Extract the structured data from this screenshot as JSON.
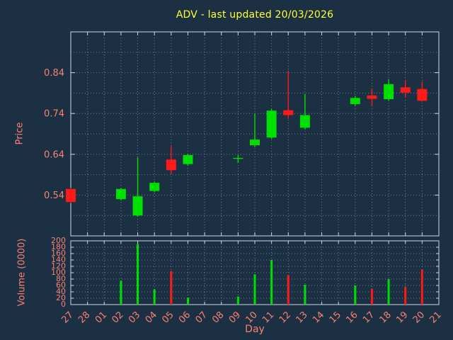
{
  "chart_data": {
    "type": "candlestick",
    "title": "ADV - last updated 20/03/2026",
    "xlabel": "Day",
    "ylabel_price": "Price",
    "ylabel_volume": "Volume (0000)",
    "legend": "none",
    "grid": "dotted",
    "x_categories": [
      "27",
      "28",
      "01",
      "02",
      "03",
      "04",
      "05",
      "06",
      "07",
      "08",
      "09",
      "10",
      "11",
      "12",
      "13",
      "14",
      "15",
      "16",
      "17",
      "18",
      "19",
      "20",
      "21"
    ],
    "price_axis": {
      "min": 0.44,
      "max": 0.94,
      "ticks": [
        0.54,
        0.64,
        0.74,
        0.84
      ],
      "minor_step": 0.05
    },
    "volume_axis": {
      "min": 0,
      "max": 200,
      "ticks": [
        0,
        20,
        40,
        60,
        80,
        100,
        120,
        140,
        160,
        180,
        200
      ]
    },
    "candles": [
      {
        "day": "27",
        "open": 0.555,
        "high": 0.558,
        "low": 0.52,
        "close": 0.523,
        "volume": 0
      },
      {
        "day": "02",
        "open": 0.53,
        "high": 0.557,
        "low": 0.527,
        "close": 0.555,
        "volume": 75
      },
      {
        "day": "03",
        "open": 0.49,
        "high": 0.632,
        "low": 0.487,
        "close": 0.537,
        "volume": 190
      },
      {
        "day": "04",
        "open": 0.55,
        "high": 0.573,
        "low": 0.547,
        "close": 0.57,
        "volume": 48
      },
      {
        "day": "05",
        "open": 0.627,
        "high": 0.66,
        "low": 0.592,
        "close": 0.601,
        "volume": 105
      },
      {
        "day": "06",
        "open": 0.616,
        "high": 0.641,
        "low": 0.612,
        "close": 0.638,
        "volume": 22
      },
      {
        "day": "09",
        "open": 0.629,
        "high": 0.638,
        "low": 0.619,
        "close": 0.631,
        "volume": 25
      },
      {
        "day": "10",
        "open": 0.662,
        "high": 0.74,
        "low": 0.658,
        "close": 0.676,
        "volume": 95
      },
      {
        "day": "11",
        "open": 0.681,
        "high": 0.751,
        "low": 0.678,
        "close": 0.747,
        "volume": 140
      },
      {
        "day": "12",
        "open": 0.748,
        "high": 0.845,
        "low": 0.727,
        "close": 0.736,
        "volume": 92
      },
      {
        "day": "13",
        "open": 0.705,
        "high": 0.788,
        "low": 0.701,
        "close": 0.736,
        "volume": 62
      },
      {
        "day": "16",
        "open": 0.763,
        "high": 0.783,
        "low": 0.759,
        "close": 0.778,
        "volume": 60
      },
      {
        "day": "17",
        "open": 0.784,
        "high": 0.801,
        "low": 0.758,
        "close": 0.776,
        "volume": 50
      },
      {
        "day": "18",
        "open": 0.775,
        "high": 0.824,
        "low": 0.771,
        "close": 0.812,
        "volume": 80
      },
      {
        "day": "19",
        "open": 0.804,
        "high": 0.822,
        "low": 0.779,
        "close": 0.791,
        "volume": 55
      },
      {
        "day": "20",
        "open": 0.8,
        "high": 0.818,
        "low": 0.769,
        "close": 0.771,
        "volume": 110
      }
    ],
    "colors": {
      "background": "#1c3044",
      "title": "#ffff33",
      "axis_text": "#fa8072",
      "grid": "#93a6bb",
      "border": "#cdd9e5",
      "up": "#00e000",
      "down": "#ff1a1a"
    }
  }
}
